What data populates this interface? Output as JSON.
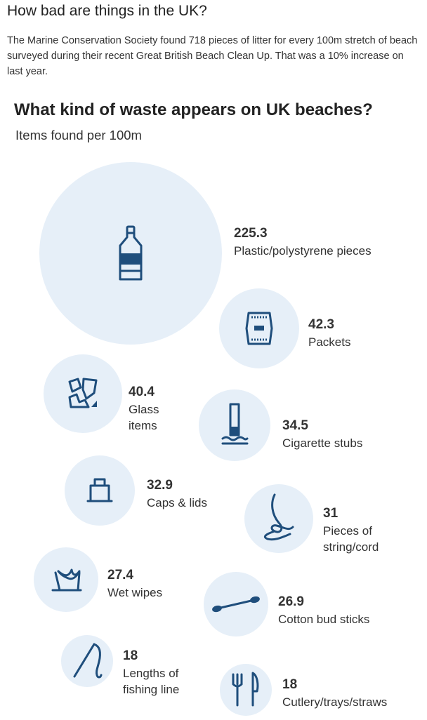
{
  "article": {
    "heading": "How bad are things in the UK?",
    "intro": "The Marine Conservation Society found 718 pieces of litter for every 100m stretch of beach surveyed during their recent Great British Beach Clean Up. That was a 10% increase on last year."
  },
  "chart_data": {
    "type": "bubble",
    "title": "What kind of waste appears on UK beaches?",
    "subtitle": "Items found per 100m",
    "bubble_color": "#e6eff8",
    "icon_color": "#1f4e7c",
    "items": [
      {
        "value": 225.3,
        "value_label": "225.3",
        "label": [
          "Plastic/polystyrene pieces"
        ],
        "icon": "plastic-bottle-icon"
      },
      {
        "value": 42.3,
        "value_label": "42.3",
        "label": [
          "Packets"
        ],
        "icon": "packet-icon"
      },
      {
        "value": 40.4,
        "value_label": "40.4",
        "label": [
          "Glass",
          "items"
        ],
        "icon": "broken-glass-icon"
      },
      {
        "value": 34.5,
        "value_label": "34.5",
        "label": [
          "Cigarette stubs"
        ],
        "icon": "cigarette-stub-icon"
      },
      {
        "value": 32.9,
        "value_label": "32.9",
        "label": [
          "Caps & lids"
        ],
        "icon": "cap-icon"
      },
      {
        "value": 31,
        "value_label": "31",
        "label": [
          "Pieces of",
          "string/cord"
        ],
        "icon": "string-icon"
      },
      {
        "value": 27.4,
        "value_label": "27.4",
        "label": [
          "Wet wipes"
        ],
        "icon": "wet-wipes-icon"
      },
      {
        "value": 26.9,
        "value_label": "26.9",
        "label": [
          "Cotton bud sticks"
        ],
        "icon": "cotton-bud-icon"
      },
      {
        "value": 18,
        "value_label": "18",
        "label": [
          "Lengths of",
          "fishing line"
        ],
        "icon": "fishing-line-icon"
      },
      {
        "value": 18,
        "value_label": "18",
        "label": [
          "Cutlery/trays/straws"
        ],
        "icon": "cutlery-icon"
      }
    ]
  }
}
